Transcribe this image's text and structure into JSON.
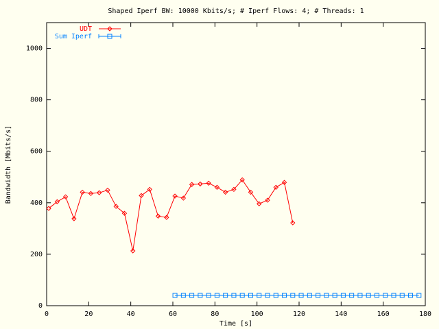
{
  "chart_data": {
    "type": "line",
    "title": "Shaped Iperf BW: 10000 Kbits/s; # Iperf Flows: 4; # Threads: 1",
    "x_label": "Time [s]",
    "y_label": "Bandwidth [Mbits/s]",
    "xlim": [
      0,
      180
    ],
    "xticks": [
      0,
      20,
      40,
      60,
      80,
      100,
      120,
      140,
      160,
      180
    ],
    "ylim": [
      0,
      1100
    ],
    "yticks": [
      0,
      200,
      400,
      600,
      800,
      1000
    ],
    "legend": "top-left",
    "series": [
      {
        "name": "UDT",
        "color": "#ff0000",
        "marker": "diamond",
        "x": [
          1,
          5,
          9,
          13,
          17,
          21,
          25,
          29,
          33,
          37,
          41,
          45,
          49,
          53,
          57,
          61,
          65,
          69,
          73,
          77,
          81,
          85,
          89,
          93,
          97,
          101,
          105,
          109,
          113,
          117
        ],
        "values": [
          378,
          404,
          423,
          338,
          441,
          436,
          439,
          449,
          386,
          359,
          213,
          428,
          452,
          348,
          343,
          426,
          418,
          471,
          473,
          476,
          460,
          441,
          452,
          489,
          441,
          396,
          410,
          460,
          479,
          322
        ]
      },
      {
        "name": "Sum Iperf",
        "color": "#0080ff",
        "marker": "square",
        "x": [
          61,
          65,
          69,
          73,
          77,
          81,
          85,
          89,
          93,
          97,
          101,
          105,
          109,
          113,
          117,
          121,
          125,
          129,
          133,
          137,
          141,
          145,
          149,
          153,
          157,
          161,
          165,
          169,
          173,
          177
        ],
        "values": [
          40,
          40,
          40,
          40,
          40,
          40,
          40,
          40,
          40,
          40,
          40,
          40,
          40,
          40,
          40,
          40,
          40,
          40,
          40,
          40,
          40,
          40,
          40,
          40,
          40,
          40,
          40,
          40,
          40,
          40
        ]
      }
    ]
  }
}
